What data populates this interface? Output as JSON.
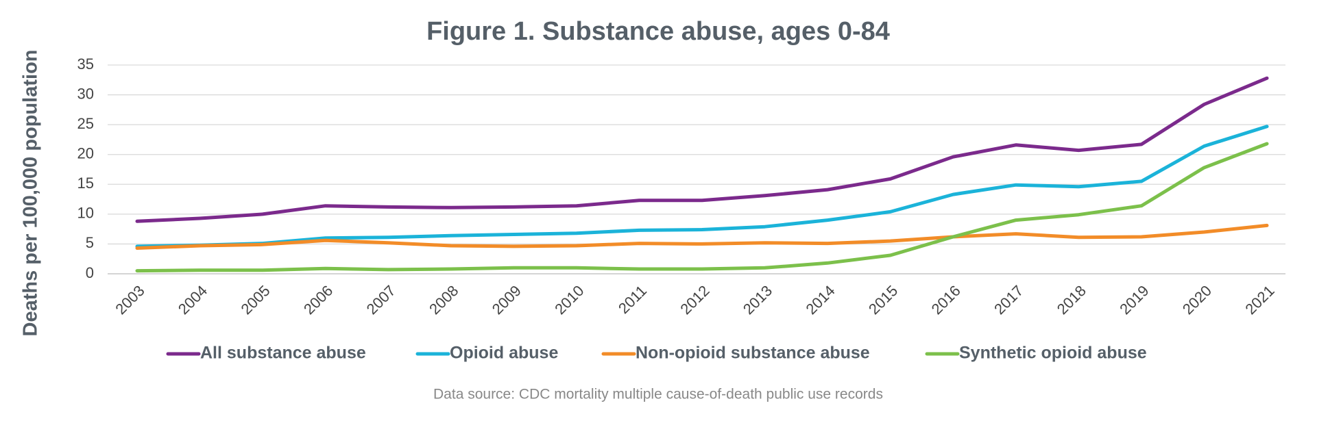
{
  "chart_data": {
    "type": "line",
    "title": "Figure 1. Substance abuse, ages 0-84",
    "y_label": "Deaths per 100,000 population",
    "source": "Data source: CDC mortality multiple cause-of-death public use records",
    "categories": [
      "2003",
      "2004",
      "2005",
      "2006",
      "2007",
      "2008",
      "2009",
      "2010",
      "2011",
      "2012",
      "2013",
      "2014",
      "2015",
      "2016",
      "2017",
      "2018",
      "2019",
      "2020",
      "2021"
    ],
    "series": [
      {
        "name": "All substance abuse",
        "color": "#7b2a8c",
        "values": [
          8.8,
          9.3,
          10.0,
          11.4,
          11.2,
          11.1,
          11.2,
          11.4,
          12.3,
          12.3,
          13.1,
          14.1,
          15.9,
          19.6,
          21.6,
          20.7,
          21.7,
          28.4,
          32.8
        ]
      },
      {
        "name": "Opioid abuse",
        "color": "#1bb3d9",
        "values": [
          4.6,
          4.8,
          5.1,
          6.0,
          6.1,
          6.4,
          6.6,
          6.8,
          7.3,
          7.4,
          7.9,
          9.0,
          10.4,
          13.3,
          14.9,
          14.6,
          15.5,
          21.4,
          24.7
        ]
      },
      {
        "name": "Non-opioid substance abuse",
        "color": "#f28c28",
        "values": [
          4.3,
          4.7,
          4.9,
          5.6,
          5.2,
          4.7,
          4.6,
          4.7,
          5.1,
          5.0,
          5.2,
          5.1,
          5.5,
          6.2,
          6.7,
          6.1,
          6.2,
          7.0,
          8.1
        ]
      },
      {
        "name": "Synthetic opioid abuse",
        "color": "#7cc04b",
        "values": [
          0.5,
          0.6,
          0.6,
          0.9,
          0.7,
          0.8,
          1.0,
          1.0,
          0.8,
          0.8,
          1.0,
          1.8,
          3.1,
          6.2,
          9.0,
          9.9,
          11.4,
          17.8,
          21.8
        ]
      }
    ],
    "ylim": [
      0,
      35
    ],
    "yticks": [
      0,
      5,
      10,
      15,
      20,
      25,
      30,
      35
    ],
    "grid": true,
    "legend": "bottom"
  }
}
